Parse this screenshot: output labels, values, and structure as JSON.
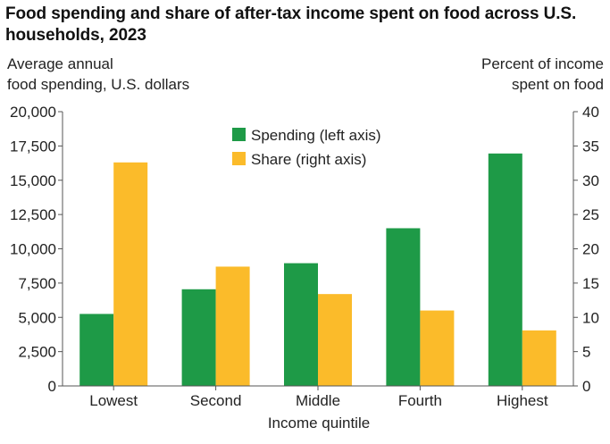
{
  "title": "Food spending and share of after-tax income spent on food across U.S. households, 2023",
  "colors": {
    "spending": "#1e9a47",
    "share": "#fbbb2a",
    "axis": "#555555",
    "text": "#222222"
  },
  "chart_data": {
    "type": "bar",
    "title": "Food spending and share of after-tax income spent on food across U.S. households, 2023",
    "xlabel": "Income quintile",
    "ylabel_left": [
      "Average annual",
      "food spending, U.S. dollars"
    ],
    "ylabel_right": [
      "Percent of income",
      "spent on food"
    ],
    "categories": [
      "Lowest",
      "Second",
      "Middle",
      "Fourth",
      "Highest"
    ],
    "left_axis": {
      "ylim": [
        0,
        20000
      ],
      "ticks": [
        0,
        2500,
        5000,
        7500,
        10000,
        12500,
        15000,
        17500,
        20000
      ],
      "tick_labels": [
        "0",
        "2,500",
        "5,000",
        "7,500",
        "10,000",
        "12,500",
        "15,000",
        "17,500",
        "20,000"
      ]
    },
    "right_axis": {
      "ylim": [
        0,
        40
      ],
      "ticks": [
        0,
        5,
        10,
        15,
        20,
        25,
        30,
        35,
        40
      ],
      "tick_labels": [
        "0",
        "5",
        "10",
        "15",
        "20",
        "25",
        "30",
        "35",
        "40"
      ]
    },
    "series": [
      {
        "name": "Spending (left axis)",
        "axis": "left",
        "values": [
          5250,
          7050,
          8950,
          11500,
          16950
        ]
      },
      {
        "name": "Share (right axis)",
        "axis": "right",
        "values": [
          32.6,
          17.4,
          13.4,
          11.0,
          8.1
        ]
      }
    ],
    "legend": "top-center",
    "grid": false
  }
}
